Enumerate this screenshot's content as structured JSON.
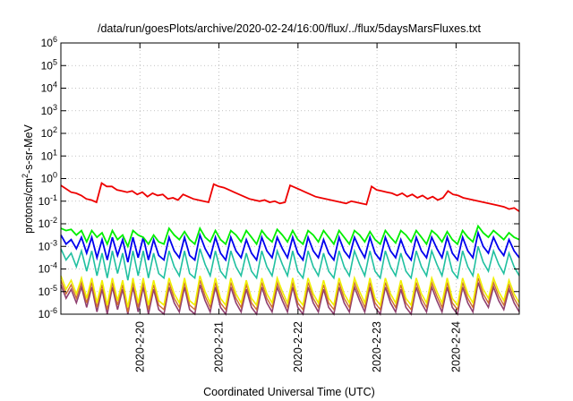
{
  "chart_data": {
    "type": "line",
    "title": "/data/run/goesPlots/archive/2020-02-24/16:00/flux/../flux/5daysMarsFluxes.txt",
    "xlabel": "Coordinated Universal Time (UTC)",
    "ylabel_base": "protons/cm",
    "ylabel_exp": "2",
    "ylabel_rest": "-s-sr-MeV",
    "yscale": "log",
    "ylim_exp": [
      -6,
      6
    ],
    "y_ticks": [
      {
        "base": "10",
        "exp": "-6",
        "value_exp": -6
      },
      {
        "base": "10",
        "exp": "-5",
        "value_exp": -5
      },
      {
        "base": "10",
        "exp": "-4",
        "value_exp": -4
      },
      {
        "base": "10",
        "exp": "-3",
        "value_exp": -3
      },
      {
        "base": "10",
        "exp": "-2",
        "value_exp": -2
      },
      {
        "base": "10",
        "exp": "-1",
        "value_exp": -1
      },
      {
        "base": "10",
        "exp": "0",
        "value_exp": 0
      },
      {
        "base": "10",
        "exp": "1",
        "value_exp": 1
      },
      {
        "base": "10",
        "exp": "2",
        "value_exp": 2
      },
      {
        "base": "10",
        "exp": "3",
        "value_exp": 3
      },
      {
        "base": "10",
        "exp": "4",
        "value_exp": 4
      },
      {
        "base": "10",
        "exp": "5",
        "value_exp": 5
      },
      {
        "base": "10",
        "exp": "6",
        "value_exp": 6
      }
    ],
    "x_range_days": [
      0,
      5.8
    ],
    "x_ticks": [
      {
        "label": "2020-2-20",
        "day": 1.0
      },
      {
        "label": "2020-2-21",
        "day": 2.0
      },
      {
        "label": "2020-2-22",
        "day": 3.0
      },
      {
        "label": "2020-2-23",
        "day": 4.0
      },
      {
        "label": "2020-2-24",
        "day": 5.0
      }
    ],
    "grid": true,
    "series": [
      {
        "color": "#ee0000",
        "width": 1.8,
        "log_values": [
          -0.3,
          -0.45,
          -0.6,
          -0.65,
          -0.75,
          -0.9,
          -0.95,
          -1.05,
          -0.2,
          -0.35,
          -0.35,
          -0.5,
          -0.55,
          -0.6,
          -0.55,
          -0.7,
          -0.6,
          -0.8,
          -0.65,
          -0.75,
          -0.7,
          -0.9,
          -0.85,
          -0.95,
          -0.7,
          -0.8,
          -0.9,
          -0.95,
          -1.0,
          -1.05,
          -0.25,
          -0.35,
          -0.4,
          -0.5,
          -0.6,
          -0.7,
          -0.8,
          -0.9,
          -0.95,
          -1.0,
          -0.95,
          -1.05,
          -1.0,
          -1.1,
          -1.05,
          -0.3,
          -0.4,
          -0.5,
          -0.6,
          -0.7,
          -0.8,
          -0.85,
          -0.9,
          -0.95,
          -1.0,
          -1.05,
          -1.1,
          -1.0,
          -1.05,
          -1.1,
          -1.15,
          -0.35,
          -0.5,
          -0.55,
          -0.6,
          -0.65,
          -0.75,
          -0.65,
          -0.8,
          -0.7,
          -0.85,
          -0.75,
          -0.9,
          -0.8,
          -0.95,
          -0.85,
          -0.55,
          -0.7,
          -0.75,
          -0.85,
          -0.9,
          -0.95,
          -1.0,
          -1.05,
          -1.1,
          -1.15,
          -1.2,
          -1.25,
          -1.35,
          -1.3,
          -1.45
        ]
      },
      {
        "color": "#00ee00",
        "width": 1.8,
        "log_values": [
          -2.2,
          -2.3,
          -2.25,
          -2.5,
          -2.3,
          -2.8,
          -2.3,
          -2.6,
          -2.4,
          -2.9,
          -2.3,
          -2.7,
          -2.5,
          -3.0,
          -2.3,
          -2.5,
          -2.6,
          -2.9,
          -2.5,
          -2.8,
          -2.9,
          -2.2,
          -2.5,
          -2.7,
          -2.35,
          -2.7,
          -2.9,
          -2.2,
          -2.6,
          -2.8,
          -2.3,
          -2.7,
          -2.9,
          -2.3,
          -2.5,
          -2.8,
          -2.3,
          -2.6,
          -2.9,
          -2.3,
          -2.6,
          -2.8,
          -2.25,
          -2.5,
          -2.8,
          -2.3,
          -2.7,
          -2.9,
          -2.3,
          -2.5,
          -2.8,
          -2.3,
          -2.6,
          -2.9,
          -2.3,
          -2.6,
          -2.9,
          -2.3,
          -2.5,
          -2.8,
          -2.35,
          -2.7,
          -2.9,
          -2.3,
          -2.6,
          -2.85,
          -2.3,
          -2.5,
          -2.8,
          -2.3,
          -2.6,
          -2.9,
          -2.3,
          -2.5,
          -2.8,
          -2.35,
          -2.7,
          -2.9,
          -2.3,
          -2.6,
          -2.8,
          -2.1,
          -2.4,
          -2.6,
          -2.3,
          -2.5,
          -2.7,
          -2.4,
          -2.6,
          -2.7
        ]
      },
      {
        "color": "#0000ee",
        "width": 1.8,
        "log_values": [
          -2.5,
          -2.9,
          -2.7,
          -3.1,
          -2.6,
          -3.3,
          -2.6,
          -3.5,
          -2.7,
          -3.6,
          -2.6,
          -3.4,
          -2.7,
          -3.7,
          -2.6,
          -3.5,
          -2.6,
          -3.6,
          -2.7,
          -3.4,
          -3.6,
          -2.6,
          -3.2,
          -3.5,
          -2.6,
          -3.4,
          -3.6,
          -2.5,
          -3.1,
          -3.5,
          -2.6,
          -3.3,
          -3.6,
          -2.6,
          -3.2,
          -3.5,
          -2.7,
          -3.3,
          -3.6,
          -2.6,
          -3.2,
          -3.5,
          -2.6,
          -3.1,
          -3.5,
          -2.6,
          -3.3,
          -3.6,
          -2.6,
          -3.2,
          -3.5,
          -2.7,
          -3.3,
          -3.6,
          -2.6,
          -3.2,
          -3.5,
          -2.6,
          -3.1,
          -3.5,
          -2.6,
          -3.3,
          -3.6,
          -2.6,
          -3.2,
          -3.5,
          -2.7,
          -3.3,
          -3.6,
          -2.6,
          -3.2,
          -3.5,
          -2.6,
          -3.1,
          -3.5,
          -2.6,
          -3.3,
          -3.6,
          -2.6,
          -3.2,
          -3.5,
          -2.4,
          -3.0,
          -3.3,
          -2.6,
          -3.1,
          -3.4,
          -2.7,
          -3.2,
          -3.5
        ]
      },
      {
        "color": "#20c0a0",
        "width": 1.6,
        "log_values": [
          -3.1,
          -3.6,
          -3.3,
          -3.9,
          -3.2,
          -4.1,
          -3.2,
          -4.3,
          -3.3,
          -4.4,
          -3.2,
          -4.2,
          -3.3,
          -4.5,
          -3.2,
          -4.3,
          -3.2,
          -4.4,
          -3.3,
          -4.2,
          -4.4,
          -3.2,
          -3.9,
          -4.3,
          -3.2,
          -4.2,
          -4.4,
          -3.1,
          -3.8,
          -4.3,
          -3.2,
          -4.1,
          -4.4,
          -3.2,
          -3.9,
          -4.3,
          -3.3,
          -4.1,
          -4.4,
          -3.2,
          -3.9,
          -4.3,
          -3.2,
          -3.8,
          -4.3,
          -3.2,
          -4.1,
          -4.4,
          -3.2,
          -3.9,
          -4.3,
          -3.3,
          -4.1,
          -4.4,
          -3.2,
          -3.9,
          -4.3,
          -3.2,
          -3.8,
          -4.3,
          -3.2,
          -4.1,
          -4.4,
          -3.2,
          -3.9,
          -4.3,
          -3.3,
          -4.1,
          -4.4,
          -3.2,
          -3.9,
          -4.3,
          -3.2,
          -3.8,
          -4.3,
          -3.2,
          -4.1,
          -4.4,
          -3.2,
          -3.9,
          -4.3,
          -3.0,
          -3.7,
          -4.1,
          -3.2,
          -3.8,
          -4.2,
          -3.3,
          -3.9,
          -4.3
        ]
      },
      {
        "color": "#f0f000",
        "width": 1.6,
        "log_values": [
          -4.3,
          -4.9,
          -4.5,
          -5.1,
          -4.4,
          -5.3,
          -4.4,
          -5.5,
          -4.5,
          -5.6,
          -4.4,
          -5.4,
          -4.5,
          -5.7,
          -4.4,
          -5.5,
          -4.4,
          -5.6,
          -4.5,
          -5.4,
          -5.6,
          -4.4,
          -5.1,
          -5.5,
          -4.4,
          -5.4,
          -5.6,
          -4.3,
          -5.0,
          -5.5,
          -4.4,
          -5.3,
          -5.6,
          -4.4,
          -5.1,
          -5.5,
          -4.5,
          -5.3,
          -5.6,
          -4.4,
          -5.1,
          -5.5,
          -4.4,
          -5.0,
          -5.5,
          -4.4,
          -5.3,
          -5.6,
          -4.4,
          -5.1,
          -5.5,
          -4.5,
          -5.3,
          -5.6,
          -4.4,
          -5.1,
          -5.5,
          -4.4,
          -5.0,
          -5.5,
          -4.4,
          -5.3,
          -5.6,
          -4.4,
          -5.1,
          -5.5,
          -4.5,
          -5.3,
          -5.6,
          -4.4,
          -5.1,
          -5.5,
          -4.4,
          -5.0,
          -5.5,
          -4.4,
          -5.3,
          -5.6,
          -4.4,
          -5.1,
          -5.5,
          -4.2,
          -4.9,
          -5.3,
          -4.4,
          -5.0,
          -5.4,
          -4.5,
          -5.1,
          -5.5
        ]
      },
      {
        "color": "#d07030",
        "width": 1.4,
        "log_values": [
          -4.5,
          -5.1,
          -4.7,
          -5.3,
          -4.6,
          -5.5,
          -4.6,
          -5.7,
          -4.7,
          -5.8,
          -4.6,
          -5.6,
          -4.7,
          -5.9,
          -4.6,
          -5.7,
          -4.6,
          -5.8,
          -4.7,
          -5.6,
          -5.8,
          -4.6,
          -5.3,
          -5.7,
          -4.6,
          -5.6,
          -5.8,
          -4.5,
          -5.2,
          -5.7,
          -4.6,
          -5.5,
          -5.8,
          -4.6,
          -5.3,
          -5.7,
          -4.7,
          -5.5,
          -5.8,
          -4.6,
          -5.3,
          -5.7,
          -4.6,
          -5.2,
          -5.7,
          -4.6,
          -5.5,
          -5.8,
          -4.6,
          -5.3,
          -5.7,
          -4.7,
          -5.5,
          -5.8,
          -4.6,
          -5.3,
          -5.7,
          -4.6,
          -5.2,
          -5.7,
          -4.6,
          -5.5,
          -5.8,
          -4.6,
          -5.3,
          -5.7,
          -4.7,
          -5.5,
          -5.8,
          -4.6,
          -5.3,
          -5.7,
          -4.6,
          -5.2,
          -5.7,
          -4.6,
          -5.5,
          -5.8,
          -4.6,
          -5.3,
          -5.7,
          -4.4,
          -5.1,
          -5.5,
          -4.6,
          -5.2,
          -5.6,
          -4.7,
          -5.3,
          -5.7
        ]
      },
      {
        "color": "#904070",
        "width": 1.6,
        "log_values": [
          -4.7,
          -5.3,
          -4.9,
          -5.5,
          -4.8,
          -5.7,
          -4.8,
          -5.9,
          -4.9,
          -6.0,
          -4.8,
          -5.8,
          -4.9,
          -6.0,
          -4.8,
          -5.9,
          -4.8,
          -6.0,
          -4.9,
          -5.8,
          -6.0,
          -4.8,
          -5.5,
          -5.9,
          -4.8,
          -5.8,
          -6.0,
          -4.7,
          -5.4,
          -5.9,
          -4.8,
          -5.7,
          -6.0,
          -4.8,
          -5.5,
          -5.9,
          -4.9,
          -5.7,
          -6.0,
          -4.8,
          -5.5,
          -5.9,
          -4.8,
          -5.4,
          -5.9,
          -4.8,
          -5.7,
          -6.0,
          -4.8,
          -5.5,
          -5.9,
          -4.9,
          -5.7,
          -6.0,
          -4.8,
          -5.5,
          -5.9,
          -4.8,
          -5.4,
          -5.9,
          -4.8,
          -5.7,
          -6.0,
          -4.8,
          -5.5,
          -5.9,
          -4.9,
          -5.7,
          -6.0,
          -4.8,
          -5.5,
          -5.9,
          -4.8,
          -5.4,
          -5.9,
          -4.8,
          -5.7,
          -6.0,
          -4.8,
          -5.5,
          -5.9,
          -4.6,
          -5.3,
          -5.7,
          -4.8,
          -5.4,
          -5.8,
          -4.9,
          -5.5,
          -5.9
        ]
      }
    ]
  }
}
